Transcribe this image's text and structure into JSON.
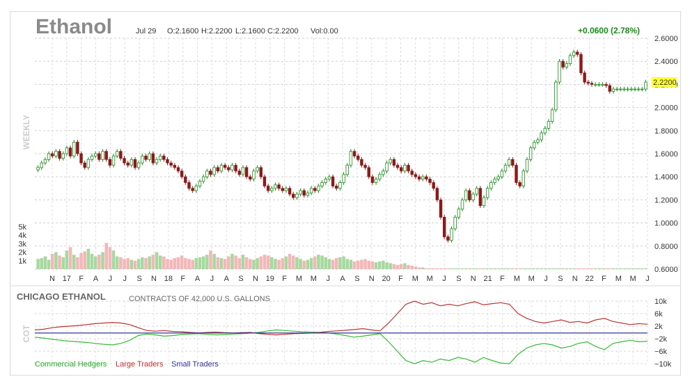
{
  "header": {
    "symbol": "Ethanol",
    "date": "Jul 29",
    "open": "O:2.1600",
    "high": "H:2.2200",
    "low": "L:2.1600",
    "close": "C:2.2200",
    "volume": "Vol:0.00",
    "change": "+0.0600 (2.78%)",
    "last_price": "2.2200",
    "period_label": "WEEKLY"
  },
  "cot_header": {
    "title": "CHICAGO ETHANOL",
    "subtitle": "CONTRACTS OF 42,000 U.S. GALLONS",
    "side_label": "COT"
  },
  "colors": {
    "up": "#1a8a1a",
    "down": "#8b1a1a",
    "vol_up": "#a8d8a0",
    "vol_down": "#f2b8b8",
    "commercial": "#33bb33",
    "large": "#bb3333",
    "small": "#333399",
    "highlight": "#ffff33"
  },
  "chart_data": [
    {
      "type": "candlestick",
      "x_ticks": [
        "N",
        "17",
        "F",
        "A",
        "J",
        "J",
        "S",
        "N",
        "18",
        "F",
        "A",
        "J",
        "A",
        "S",
        "N",
        "19",
        "F",
        "M",
        "M",
        "J",
        "A",
        "S",
        "N",
        "20",
        "F",
        "M",
        "M",
        "J",
        "S",
        "N",
        "21",
        "F",
        "M",
        "M",
        "J",
        "S",
        "N",
        "22",
        "F",
        "M",
        "M",
        "J"
      ],
      "y_ticks": [
        "0.6000",
        "0.8000",
        "1.0000",
        "1.2000",
        "1.4000",
        "1.6000",
        "1.8000",
        "2.0000",
        "2.2000",
        "2.4000",
        "2.6000"
      ],
      "ylim": [
        0.6,
        2.6
      ],
      "volume_ticks": [
        "1k",
        "2k",
        "3k",
        "4k",
        "5k"
      ],
      "closes": [
        1.48,
        1.52,
        1.55,
        1.6,
        1.58,
        1.62,
        1.56,
        1.6,
        1.65,
        1.58,
        1.7,
        1.6,
        1.52,
        1.48,
        1.55,
        1.58,
        1.6,
        1.55,
        1.62,
        1.55,
        1.5,
        1.58,
        1.62,
        1.56,
        1.52,
        1.5,
        1.55,
        1.48,
        1.52,
        1.58,
        1.55,
        1.6,
        1.52,
        1.55,
        1.58,
        1.55,
        1.52,
        1.5,
        1.48,
        1.45,
        1.4,
        1.35,
        1.3,
        1.28,
        1.32,
        1.36,
        1.4,
        1.45,
        1.42,
        1.48,
        1.45,
        1.5,
        1.48,
        1.46,
        1.5,
        1.45,
        1.42,
        1.48,
        1.4,
        1.38,
        1.45,
        1.48,
        1.4,
        1.32,
        1.28,
        1.3,
        1.33,
        1.3,
        1.28,
        1.3,
        1.25,
        1.22,
        1.25,
        1.28,
        1.24,
        1.26,
        1.3,
        1.28,
        1.32,
        1.35,
        1.38,
        1.4,
        1.32,
        1.3,
        1.35,
        1.42,
        1.5,
        1.62,
        1.58,
        1.55,
        1.5,
        1.48,
        1.4,
        1.35,
        1.38,
        1.42,
        1.45,
        1.52,
        1.55,
        1.5,
        1.48,
        1.45,
        1.5,
        1.45,
        1.42,
        1.4,
        1.38,
        1.4,
        1.38,
        1.35,
        1.3,
        1.2,
        1.05,
        0.88,
        0.85,
        0.95,
        1.05,
        1.12,
        1.2,
        1.28,
        1.2,
        1.25,
        1.3,
        1.15,
        1.22,
        1.3,
        1.35,
        1.38,
        1.4,
        1.45,
        1.5,
        1.55,
        1.5,
        1.35,
        1.32,
        1.45,
        1.55,
        1.65,
        1.7,
        1.72,
        1.78,
        1.82,
        1.88,
        1.98,
        2.22,
        2.4,
        2.35,
        2.38,
        2.45,
        2.48,
        2.46,
        2.3,
        2.22,
        2.21,
        2.2,
        2.2,
        2.2,
        2.2,
        2.19,
        2.14,
        2.16,
        2.16,
        2.16,
        2.16,
        2.16,
        2.16,
        2.16,
        2.16,
        2.16,
        2.22
      ],
      "volumes": [
        1200,
        1300,
        1500,
        1100,
        1800,
        2000,
        1600,
        1400,
        2200,
        2600,
        1700,
        1400,
        1900,
        2100,
        2400,
        1800,
        1500,
        1700,
        2000,
        3100,
        2600,
        2200,
        1500,
        1400,
        1200,
        1300,
        1100,
        1000,
        1200,
        1400,
        1300,
        1500,
        1700,
        2000,
        1600,
        1500,
        1200,
        1100,
        1300,
        1400,
        1600,
        1300,
        1200,
        1100,
        1300,
        1400,
        1500,
        1700,
        2200,
        1800,
        1400,
        1300,
        1200,
        1500,
        1800,
        1600,
        1300,
        1700,
        1400,
        1200,
        1100,
        1300,
        1500,
        1700,
        1600,
        1400,
        1200,
        1100,
        1300,
        1500,
        1800,
        1600,
        1400,
        1200,
        1000,
        1100,
        1300,
        1500,
        1700,
        1600,
        1400,
        1200,
        1100,
        1300,
        1400,
        1500,
        1200,
        1100,
        900,
        1000,
        1100,
        1200,
        1000,
        900,
        800,
        900,
        1000,
        800,
        700,
        600,
        500,
        600,
        700,
        500,
        400,
        300,
        200,
        200,
        100,
        100,
        100,
        100,
        100,
        100,
        100,
        100,
        100,
        100,
        100,
        100,
        100,
        100,
        100,
        100,
        100,
        100,
        100,
        100,
        100,
        100,
        100,
        100,
        100,
        100,
        100,
        100,
        100,
        100,
        100,
        100,
        100,
        100,
        100,
        100,
        100,
        100,
        100,
        100,
        100,
        100,
        100,
        100,
        100,
        100,
        100,
        100,
        100,
        100,
        100,
        100,
        100,
        100,
        100,
        100,
        100,
        100,
        100,
        100,
        100,
        100,
        100,
        100
      ]
    },
    {
      "type": "line",
      "y_ticks": [
        "10k",
        "6k",
        "2k",
        "−2k",
        "−6k",
        "−10k"
      ],
      "ylim": [
        -10000,
        10000
      ],
      "series": [
        {
          "name": "Commercial Hedgers",
          "values": [
            -1500,
            -1800,
            -2200,
            -2500,
            -2800,
            -3000,
            -3200,
            -3500,
            -3800,
            -4000,
            -3500,
            -2500,
            -1000,
            -500,
            -800,
            -1200,
            -1000,
            -700,
            -500,
            -400,
            -600,
            -800,
            -700,
            -500,
            -400,
            -200,
            0,
            500,
            800,
            600,
            400,
            200,
            100,
            0,
            -200,
            -500,
            -1000,
            -1500,
            -1200,
            -800,
            -400,
            -3000,
            -6000,
            -9000,
            -10000,
            -9000,
            -9500,
            -8500,
            -9000,
            -8000,
            -8500,
            -9500,
            -8000,
            -9000,
            -9800,
            -10000,
            -7000,
            -5000,
            -4000,
            -3500,
            -4000,
            -5000,
            -4500,
            -3500,
            -3000,
            -4500,
            -5500,
            -3500,
            -3000,
            -2500,
            -3000,
            -2800
          ]
        },
        {
          "name": "Large Traders",
          "values": [
            800,
            1000,
            1500,
            1800,
            2000,
            2200,
            2500,
            2800,
            3000,
            3200,
            3000,
            2500,
            1500,
            600,
            400,
            600,
            300,
            200,
            0,
            -200,
            0,
            100,
            -100,
            -200,
            -100,
            0,
            -400,
            -600,
            -800,
            -600,
            -400,
            -300,
            -200,
            0,
            300,
            500,
            700,
            900,
            1200,
            800,
            500,
            3000,
            6000,
            9000,
            10000,
            9000,
            9500,
            8500,
            9000,
            8500,
            9200,
            9800,
            8800,
            9200,
            9500,
            9000,
            6000,
            4500,
            3500,
            3000,
            3500,
            4000,
            3200,
            3500,
            3000,
            4000,
            4500,
            3500,
            3000,
            2500,
            2800,
            2600
          ]
        },
        {
          "name": "Small Traders",
          "values": [
            -200,
            -200,
            -200,
            -200,
            -200,
            -200,
            -200,
            -200,
            -200,
            -200,
            -200,
            -200,
            -200,
            -200,
            -200,
            -200,
            -200,
            -200,
            -200,
            -200,
            -200,
            -200,
            -200,
            -200,
            -200,
            -200,
            -200,
            -200,
            -200,
            -200,
            -200,
            -200,
            -200,
            -200,
            -200,
            -200,
            -200,
            -200,
            -200,
            -200,
            -200,
            -200,
            -200,
            -200,
            -200,
            -200,
            -200,
            -200,
            -200,
            -200,
            -200,
            -200,
            -200,
            -200,
            -200,
            -200,
            -200,
            -200,
            -200,
            -200,
            -200,
            -200,
            -200,
            -200,
            -200,
            -200,
            -200,
            -200,
            -200,
            -200,
            -200,
            -200
          ]
        }
      ]
    }
  ]
}
